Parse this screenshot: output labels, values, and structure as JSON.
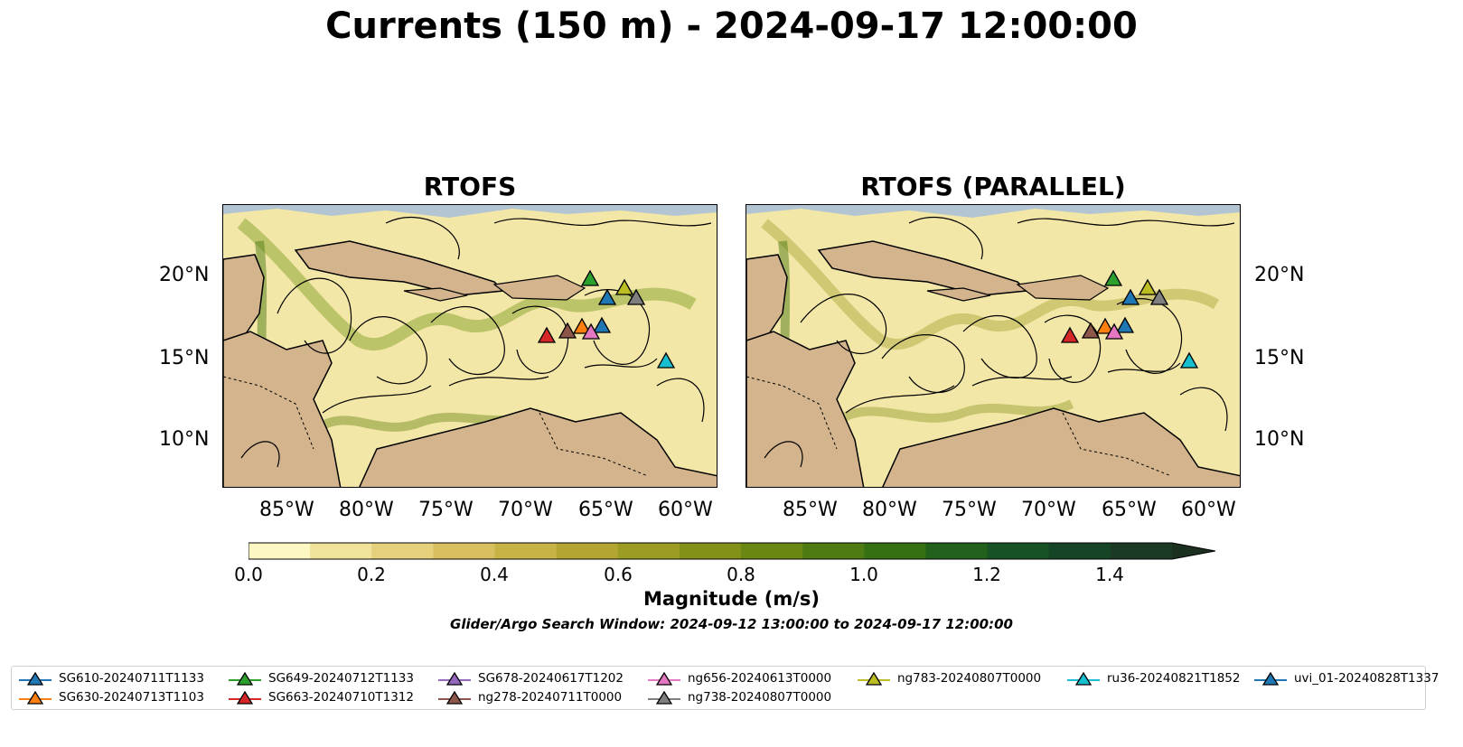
{
  "title": "Currents (150 m) - 2024-09-17 12:00:00",
  "panels": [
    {
      "title": "RTOFS"
    },
    {
      "title": "RTOFS (PARALLEL)"
    }
  ],
  "map_axes": {
    "lon_ticks": [
      "85°W",
      "80°W",
      "75°W",
      "70°W",
      "65°W",
      "60°W"
    ],
    "lat_ticks": [
      "20°N",
      "15°N",
      "10°N"
    ]
  },
  "colorbar": {
    "label": "Magnitude (m/s)",
    "ticks": [
      "0.0",
      "0.2",
      "0.4",
      "0.6",
      "0.8",
      "1.0",
      "1.2",
      "1.4"
    ],
    "range": [
      0.0,
      1.5
    ],
    "colors": [
      "#fdf7c3",
      "#f1e39a",
      "#e5d07b",
      "#d8c060",
      "#c8b347",
      "#b3a531",
      "#9c9b22",
      "#849119",
      "#6a8714",
      "#4e7c12",
      "#357012",
      "#22611b",
      "#175224",
      "#164427",
      "#1a3a26",
      "#1c3020"
    ]
  },
  "search_window": "Glider/Argo Search Window: 2024-09-12 13:00:00 to 2024-09-17 12:00:00",
  "colors": {
    "land": "#d3b48c",
    "water_coast": "#97b6e4",
    "ocean_low": "#f3e7a8"
  },
  "legend": [
    {
      "label": "SG610-20240711T1133",
      "color": "#1f77b4"
    },
    {
      "label": "SG630-20240713T1103",
      "color": "#ff7f0e"
    },
    {
      "label": "SG649-20240712T1133",
      "color": "#2ca02c"
    },
    {
      "label": "SG663-20240710T1312",
      "color": "#d62728"
    },
    {
      "label": "SG678-20240617T1202",
      "color": "#9467bd"
    },
    {
      "label": "ng278-20240711T0000",
      "color": "#8c564b"
    },
    {
      "label": "ng656-20240613T0000",
      "color": "#e377c2"
    },
    {
      "label": "ng738-20240807T0000",
      "color": "#7f7f7f"
    },
    {
      "label": "ng783-20240807T0000",
      "color": "#bcbd22"
    },
    {
      "label": "ru36-20240821T1852",
      "color": "#17becf"
    },
    {
      "label": "uvi_01-20240828T1337",
      "color": "#1f77b4"
    }
  ]
}
